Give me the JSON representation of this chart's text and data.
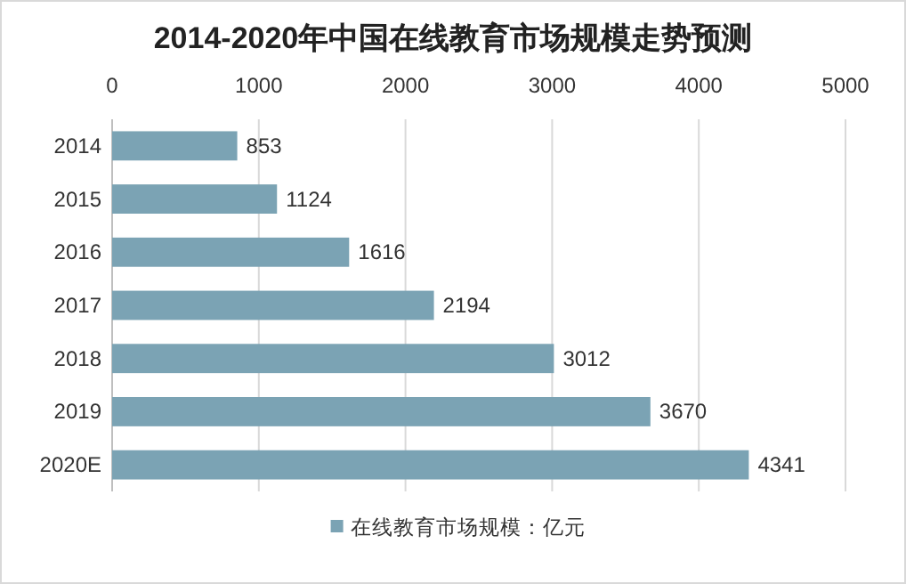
{
  "chart_data": {
    "type": "bar",
    "orientation": "horizontal",
    "title": "2014-2020年中国在线教育市场规模走势预测",
    "categories": [
      "2014",
      "2015",
      "2016",
      "2017",
      "2018",
      "2019",
      "2020E"
    ],
    "series": [
      {
        "name": "在线教育市场规模：亿元",
        "color": "#7ba3b4",
        "values": [
          853,
          1124,
          1616,
          2194,
          3012,
          3670,
          4341
        ]
      }
    ],
    "xlim": [
      0,
      5000
    ],
    "xticks": [
      0,
      1000,
      2000,
      3000,
      4000,
      5000
    ],
    "grid": "x",
    "data_labels": true,
    "legend": "bottom"
  }
}
